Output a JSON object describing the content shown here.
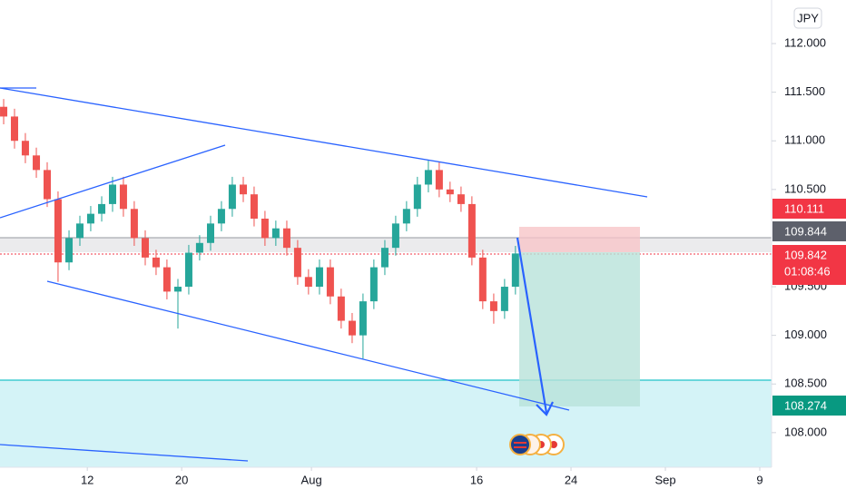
{
  "chart_data": {
    "type": "candlestick",
    "currency": "JPY",
    "up_color": "#26a69a",
    "down_color": "#ef5350",
    "x": [
      4.91,
      5.83,
      6.75,
      7.68,
      8.6,
      9.52,
      10.45,
      11.37,
      12.29,
      13.22,
      14.14,
      15.06,
      15.98,
      16.91,
      17.83,
      18.75,
      19.68,
      20.6,
      21.52,
      22.45,
      23.37,
      24.29,
      25.22,
      26.14,
      27.06,
      27.98,
      28.91,
      29.83,
      30.75,
      31.68,
      32.6,
      33.52,
      34.45,
      35.37,
      36.29,
      37.22,
      38.14,
      39.06,
      39.98,
      40.91,
      41.83,
      42.75,
      43.68,
      44.6,
      45.52,
      46.45,
      47.37,
      48.29
    ],
    "open": [
      111.35,
      111.25,
      111.0,
      110.85,
      110.7,
      110.4,
      109.75,
      110.0,
      110.15,
      110.25,
      110.35,
      110.55,
      110.3,
      110.0,
      109.8,
      109.7,
      109.45,
      109.5,
      109.85,
      109.95,
      110.15,
      110.3,
      110.55,
      110.45,
      110.2,
      110.0,
      110.1,
      109.9,
      109.6,
      109.5,
      109.7,
      109.4,
      109.15,
      109.0,
      109.35,
      109.7,
      109.9,
      110.15,
      110.3,
      110.55,
      110.7,
      110.5,
      110.45,
      110.35,
      109.8,
      109.35,
      109.25,
      109.5
    ],
    "high": [
      111.43,
      111.33,
      111.08,
      110.93,
      110.78,
      110.48,
      110.08,
      110.23,
      110.33,
      110.43,
      110.63,
      110.63,
      110.38,
      110.08,
      109.88,
      109.78,
      109.58,
      109.93,
      110.03,
      110.23,
      110.38,
      110.63,
      110.63,
      110.53,
      110.28,
      110.18,
      110.18,
      109.98,
      109.68,
      109.78,
      109.78,
      109.48,
      109.23,
      109.43,
      109.78,
      109.98,
      110.23,
      110.38,
      110.63,
      110.8,
      110.78,
      110.58,
      110.53,
      110.43,
      109.88,
      109.43,
      109.58,
      109.92
    ],
    "low": [
      111.17,
      110.92,
      110.77,
      110.62,
      110.32,
      109.55,
      109.67,
      109.92,
      110.07,
      110.17,
      110.27,
      110.22,
      109.92,
      109.72,
      109.62,
      109.37,
      109.07,
      109.42,
      109.77,
      109.87,
      110.07,
      110.22,
      110.37,
      110.12,
      109.92,
      109.92,
      109.82,
      109.52,
      109.42,
      109.42,
      109.32,
      109.07,
      108.92,
      108.76,
      109.27,
      109.62,
      109.82,
      110.07,
      110.22,
      110.47,
      110.42,
      110.37,
      110.27,
      109.72,
      109.27,
      109.12,
      109.17,
      109.42
    ],
    "close": [
      111.25,
      111.0,
      110.85,
      110.7,
      110.4,
      109.75,
      110.0,
      110.15,
      110.25,
      110.35,
      110.55,
      110.3,
      110.0,
      109.8,
      109.7,
      109.45,
      109.5,
      109.85,
      109.95,
      110.15,
      110.3,
      110.55,
      110.45,
      110.2,
      110.0,
      110.1,
      109.9,
      109.6,
      109.5,
      109.7,
      109.4,
      109.15,
      109.0,
      109.35,
      109.7,
      109.9,
      110.15,
      110.3,
      110.55,
      110.7,
      110.5,
      110.45,
      110.35,
      109.8,
      109.35,
      109.25,
      109.5,
      109.842
    ],
    "xlim": [
      4.6,
      70
    ],
    "xticks": [
      {
        "value": 12,
        "label": "12"
      },
      {
        "value": 20,
        "label": "20"
      },
      {
        "value": 31,
        "label": "Aug"
      },
      {
        "value": 45,
        "label": "16"
      },
      {
        "value": 53,
        "label": "24"
      },
      {
        "value": 61,
        "label": "Sep"
      },
      {
        "value": 69,
        "label": "9"
      }
    ],
    "ylim": [
      107.644,
      112.448
    ],
    "yticks": [
      {
        "value": 112,
        "label": "112.000"
      },
      {
        "value": 111.5,
        "label": "111.500"
      },
      {
        "value": 111,
        "label": "111.000"
      },
      {
        "value": 110.5,
        "label": "110.500"
      },
      {
        "value": 109.5,
        "label": "109.500"
      },
      {
        "value": 109,
        "label": "109.000"
      },
      {
        "value": 108.5,
        "label": "108.500"
      },
      {
        "value": 108,
        "label": "108.000"
      }
    ],
    "grid": false,
    "price_labels": [
      {
        "value": 110.111,
        "color": "#f23645"
      },
      {
        "value": 109.844,
        "color": "#5d606b"
      },
      {
        "value": 109.842,
        "color": "#f23645",
        "countdown": "01:08:46"
      },
      {
        "value": 108.274,
        "color": "#089981"
      }
    ]
  }
}
